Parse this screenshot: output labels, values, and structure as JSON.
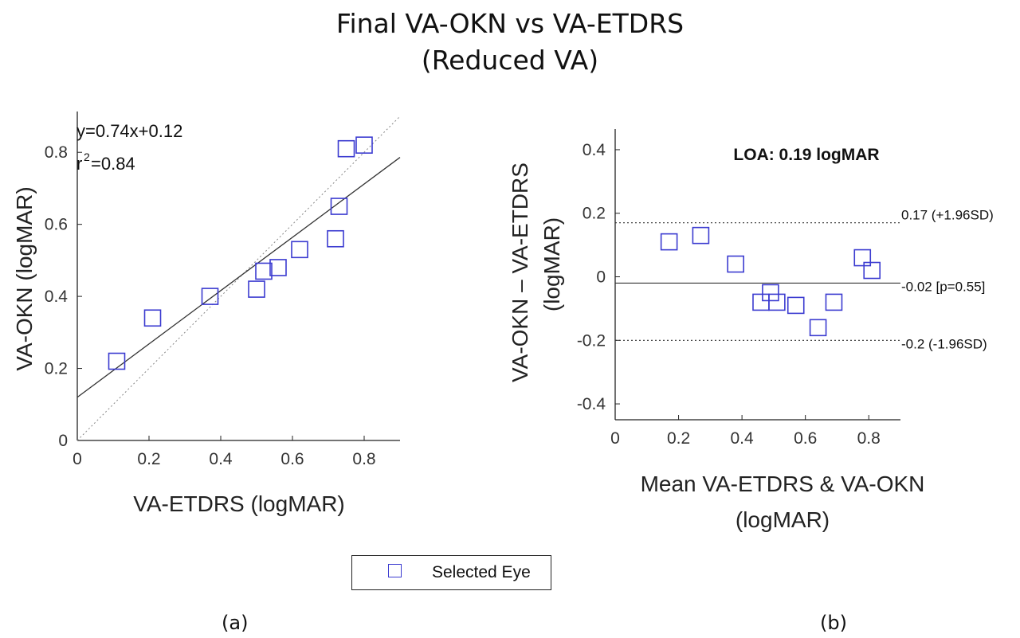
{
  "figure": {
    "title_line1": "Final VA-OKN vs VA-ETDRS",
    "title_line2": "(Reduced VA)",
    "panel_a_tag": "(a)",
    "panel_b_tag": "(b)",
    "legend_label": "Selected Eye",
    "marker_color": "#3b3bd0"
  },
  "chart_data": [
    {
      "type": "scatter",
      "panel": "(a)",
      "xlabel": "VA-ETDRS (logMAR)",
      "ylabel": "VA-OKN (logMAR)",
      "xlim": [
        0,
        0.9
      ],
      "ylim": [
        0,
        0.9
      ],
      "xticks": [
        0,
        0.2,
        0.4,
        0.6,
        0.8
      ],
      "xtick_labels": [
        "0",
        "0.2",
        "0.4",
        "0.6",
        "0.8"
      ],
      "yticks": [
        0,
        0.2,
        0.4,
        0.6,
        0.8
      ],
      "ytick_labels": [
        "0",
        "0.2",
        "0.4",
        "0.6",
        "0.8"
      ],
      "series": [
        {
          "name": "Selected Eye",
          "x": [
            0.11,
            0.21,
            0.37,
            0.5,
            0.52,
            0.56,
            0.62,
            0.72,
            0.73,
            0.75,
            0.8
          ],
          "y": [
            0.22,
            0.34,
            0.4,
            0.42,
            0.47,
            0.48,
            0.53,
            0.56,
            0.65,
            0.81,
            0.82
          ]
        }
      ],
      "fit_line": {
        "slope": 0.74,
        "intercept": 0.12
      },
      "identity_line": true,
      "annotation_line1": "y=0.74x+0.12",
      "annotation_r_prefix": "r",
      "annotation_r_exp": "2",
      "annotation_r_value": "=0.84",
      "grid": false
    },
    {
      "type": "scatter",
      "panel": "(b)",
      "xlabel_line1": "Mean VA-ETDRS & VA-OKN",
      "xlabel_line2": "(logMAR)",
      "ylabel_line1": "VA-OKN – VA-ETDRS",
      "ylabel_line2": "(logMAR)",
      "xlim": [
        0,
        0.9
      ],
      "ylim": [
        -0.45,
        0.45
      ],
      "xticks": [
        0,
        0.2,
        0.4,
        0.6,
        0.8
      ],
      "xtick_labels": [
        "0",
        "0.2",
        "0.4",
        "0.6",
        "0.8"
      ],
      "yticks": [
        -0.4,
        -0.2,
        0,
        0.2,
        0.4
      ],
      "ytick_labels": [
        "-0.4",
        "-0.2",
        "0",
        "0.2",
        "0.4"
      ],
      "series": [
        {
          "name": "Selected Eye",
          "x": [
            0.17,
            0.27,
            0.38,
            0.46,
            0.49,
            0.51,
            0.57,
            0.64,
            0.69,
            0.78,
            0.81
          ],
          "y": [
            0.11,
            0.13,
            0.04,
            -0.08,
            -0.05,
            -0.08,
            -0.09,
            -0.16,
            -0.08,
            0.06,
            0.02
          ]
        }
      ],
      "reference_lines": [
        {
          "y": 0.17,
          "style": "dotted",
          "label": "0.17 (+1.96SD)"
        },
        {
          "y": -0.02,
          "style": "solid",
          "label": "-0.02 [p=0.55]"
        },
        {
          "y": -0.2,
          "style": "dotted",
          "label": "-0.2 (-1.96SD)"
        }
      ],
      "annotation": "LOA: 0.19 logMAR",
      "grid": false
    }
  ]
}
